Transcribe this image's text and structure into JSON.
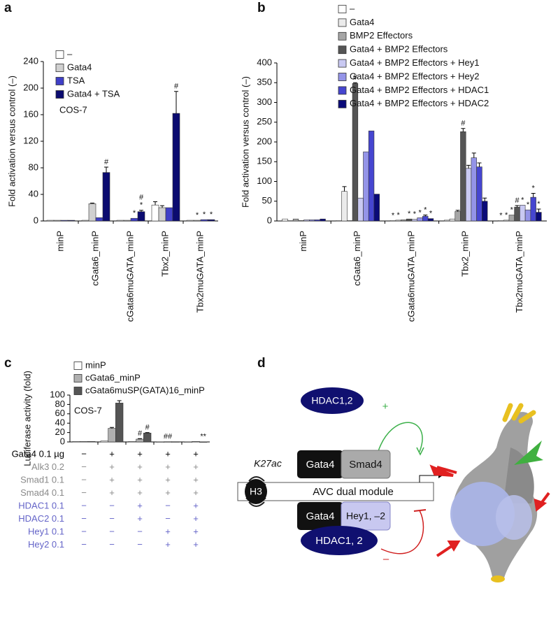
{
  "chart_data": [
    {
      "panel_label": "a",
      "type": "bar",
      "ylabel": "Fold activation versus control (–)",
      "annotation": "COS-7",
      "categories": [
        "minP",
        "cGata6_minP",
        "cGata6muGATA_minP",
        "Tbx2_minP",
        "Tbx2muGATA_minP"
      ],
      "ylim": [
        0,
        240
      ],
      "yticks": [
        0,
        40,
        80,
        120,
        160,
        200,
        240
      ],
      "legend": "top-left",
      "series": [
        {
          "name": "–",
          "color": "#ffffff",
          "values": [
            1,
            1,
            1,
            24,
            1
          ],
          "errors": [
            null,
            null,
            null,
            5,
            null
          ],
          "markers": [
            null,
            null,
            null,
            null,
            null
          ]
        },
        {
          "name": "Gata4",
          "color": "#d0d0d0",
          "values": [
            1,
            26,
            1,
            20,
            1
          ],
          "errors": [
            null,
            1,
            null,
            3,
            null
          ],
          "markers": [
            null,
            null,
            null,
            null,
            "*"
          ]
        },
        {
          "name": "TSA",
          "color": "#3f3fc8",
          "values": [
            1,
            5,
            4,
            20,
            2
          ],
          "errors": [
            null,
            null,
            null,
            null,
            null
          ],
          "markers": [
            null,
            null,
            "*",
            null,
            "*"
          ]
        },
        {
          "name": "Gata4 + TSA",
          "color": "#0b0b70",
          "values": [
            1,
            73,
            14,
            162,
            2
          ],
          "errors": [
            null,
            8,
            2,
            33,
            null
          ],
          "markers": [
            null,
            "#",
            [
              "#",
              "*"
            ],
            "#",
            "*"
          ]
        }
      ]
    },
    {
      "panel_label": "b",
      "type": "bar",
      "ylabel": "Fold activation versus control (–)",
      "categories": [
        "minP",
        "cGata6_minP",
        "cGata6muGATA_minP",
        "Tbx2_minP",
        "Tbx2muGATA_minP"
      ],
      "ylim": [
        0,
        400
      ],
      "yticks": [
        0,
        50,
        100,
        150,
        200,
        250,
        300,
        350,
        400
      ],
      "legend": "top-right",
      "series": [
        {
          "name": "–",
          "color": "#ffffff",
          "values": [
            5,
            1,
            1,
            2,
            1
          ],
          "errors": [
            null,
            null,
            null,
            null,
            null
          ],
          "markers": [
            null,
            null,
            "*",
            null,
            "*"
          ]
        },
        {
          "name": "Gata4",
          "color": "#ebebeb",
          "values": [
            1,
            75,
            2,
            5,
            2
          ],
          "errors": [
            null,
            12,
            null,
            null,
            null
          ],
          "markers": [
            null,
            null,
            "*",
            null,
            "*"
          ]
        },
        {
          "name": "BMP2 Effectors",
          "color": "#a6a6a6",
          "values": [
            5,
            1,
            3,
            24,
            15
          ],
          "errors": [
            null,
            null,
            null,
            3,
            null
          ],
          "markers": [
            null,
            null,
            null,
            null,
            "*"
          ]
        },
        {
          "name": "Gata4 + BMP2 Effectors",
          "color": "#555555",
          "values": [
            1,
            348,
            5,
            226,
            35
          ],
          "errors": [
            null,
            2,
            null,
            8,
            4
          ],
          "markers": [
            null,
            "#",
            "*",
            "#",
            "#"
          ]
        },
        {
          "name": "Gata4 + BMP2 Effectors + Hey1",
          "color": "#c9c9f2",
          "values": [
            3,
            58,
            4,
            133,
            40
          ],
          "errors": [
            null,
            null,
            null,
            8,
            null
          ],
          "markers": [
            null,
            null,
            "*",
            null,
            "*"
          ]
        },
        {
          "name": "Gata4 + BMP2 Effectors + Hey2",
          "color": "#9494e8",
          "values": [
            3,
            175,
            8,
            160,
            28
          ],
          "errors": [
            null,
            null,
            null,
            12,
            null
          ],
          "markers": [
            null,
            null,
            "*",
            null,
            "*"
          ]
        },
        {
          "name": "Gata4 + BMP2 Effectors + HDAC1",
          "color": "#4646d0",
          "values": [
            3,
            228,
            12,
            137,
            60
          ],
          "errors": [
            null,
            null,
            3,
            10,
            10
          ],
          "markers": [
            null,
            null,
            "*",
            null,
            "*"
          ]
        },
        {
          "name": "Gata4 + BMP2 Effectors + HDAC2",
          "color": "#0a0a78",
          "values": [
            5,
            68,
            6,
            50,
            22
          ],
          "errors": [
            null,
            null,
            null,
            8,
            8
          ],
          "markers": [
            null,
            null,
            "*",
            null,
            "*"
          ]
        }
      ]
    },
    {
      "panel_label": "c",
      "type": "bar",
      "ylabel": "Luciferase activity (fold)",
      "annotation": "COS-7",
      "categories": [
        null,
        null,
        null,
        null,
        null
      ],
      "ylim": [
        0,
        100
      ],
      "yticks": [
        0,
        20,
        40,
        60,
        80,
        100
      ],
      "legend": "top-left",
      "series": [
        {
          "name": "minP",
          "color": "#ffffff",
          "values": [
            1,
            2,
            1,
            0.3,
            0.3
          ],
          "errors": [
            null,
            null,
            null,
            null,
            null
          ],
          "markers": [
            null,
            null,
            null,
            null,
            null
          ]
        },
        {
          "name": "cGata6_minP",
          "color": "#b0b0b0",
          "values": [
            1,
            29,
            6,
            0.5,
            1
          ],
          "errors": [
            null,
            2,
            1,
            null,
            null
          ],
          "markers": [
            null,
            null,
            "#",
            "##",
            null
          ]
        },
        {
          "name": "cGata6muSP(GATA)16_minP",
          "color": "#555555",
          "values": [
            1,
            83,
            19,
            0.5,
            0.3
          ],
          "errors": [
            null,
            5,
            1,
            null,
            null
          ],
          "markers": [
            null,
            null,
            "#",
            null,
            "**"
          ]
        }
      ],
      "conditions": [
        {
          "label": "Gata4 0.1 µg",
          "color": "#000000",
          "cells": [
            "−",
            "+",
            "+",
            "+",
            "+"
          ]
        },
        {
          "label": "Alk3 0.2",
          "color": "#8a8a8a",
          "cells": [
            "−",
            "+",
            "+",
            "+",
            "+"
          ]
        },
        {
          "label": "Smad1 0.1",
          "color": "#8a8a8a",
          "cells": [
            "−",
            "+",
            "+",
            "+",
            "+"
          ]
        },
        {
          "label": "Smad4 0.1",
          "color": "#8a8a8a",
          "cells": [
            "−",
            "+",
            "+",
            "+",
            "+"
          ]
        },
        {
          "label": "HDAC1 0.1",
          "color": "#6464c8",
          "cells": [
            "−",
            "−",
            "+",
            "−",
            "+"
          ]
        },
        {
          "label": "HDAC2 0.1",
          "color": "#6464c8",
          "cells": [
            "−",
            "−",
            "+",
            "−",
            "+"
          ]
        },
        {
          "label": "Hey1 0.1",
          "color": "#6464c8",
          "cells": [
            "−",
            "−",
            "−",
            "+",
            "+"
          ]
        },
        {
          "label": "Hey2 0.1",
          "color": "#6464c8",
          "cells": [
            "−",
            "−",
            "−",
            "+",
            "+"
          ]
        }
      ]
    }
  ],
  "diagram": {
    "panel_label": "d",
    "hdac_top": "HDAC1,2",
    "activation": "+",
    "mark": "K27ac",
    "gata4_top": "Gata4",
    "smad4": "Smad4",
    "histone": "H3",
    "module": "AVC dual module",
    "gata4_bottom": "Gata4",
    "hey": "Hey1, –2",
    "hdac_bottom": "HDAC1, 2",
    "repression": "–"
  }
}
